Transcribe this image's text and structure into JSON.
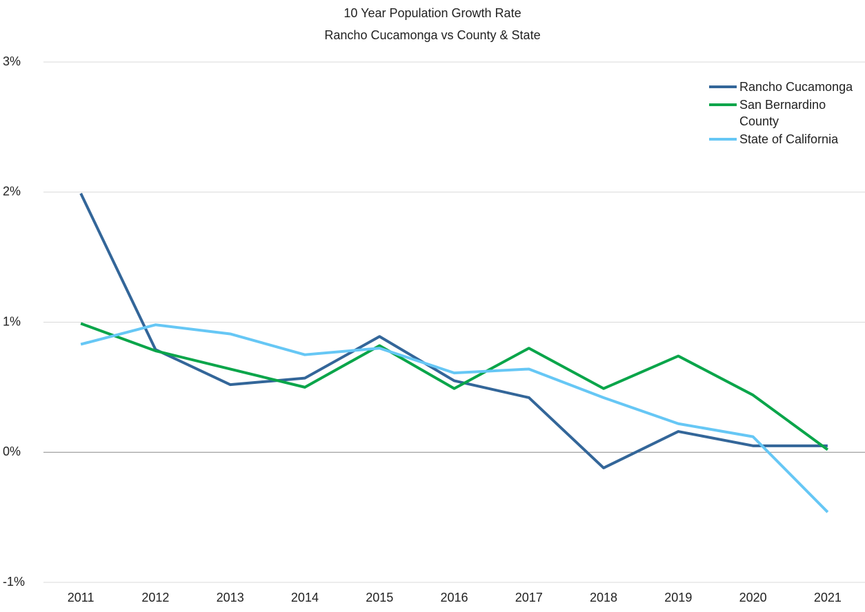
{
  "chart_data": {
    "type": "line",
    "title": "10 Year Population Growth Rate",
    "subtitle": "Rancho Cucamonga vs County & State",
    "categories": [
      "2011",
      "2012",
      "2013",
      "2014",
      "2015",
      "2016",
      "2017",
      "2018",
      "2019",
      "2020",
      "2021"
    ],
    "series": [
      {
        "name": "Rancho Cucamonga",
        "color": "#336699",
        "values": [
          1.99,
          0.79,
          0.52,
          0.57,
          0.89,
          0.55,
          0.42,
          -0.12,
          0.16,
          0.05,
          0.05
        ]
      },
      {
        "name": "San Bernardino County",
        "color": "#0aa54a",
        "values": [
          0.99,
          0.78,
          0.64,
          0.5,
          0.82,
          0.49,
          0.8,
          0.49,
          0.74,
          0.44,
          0.02
        ]
      },
      {
        "name": "State of California",
        "color": "#66c7f5",
        "values": [
          0.83,
          0.98,
          0.91,
          0.75,
          0.8,
          0.61,
          0.64,
          0.42,
          0.22,
          0.12,
          -0.46
        ]
      }
    ],
    "ylim": [
      -1,
      3
    ],
    "yticks": [
      {
        "value": -1,
        "label": "-1%"
      },
      {
        "value": 0,
        "label": "0%"
      },
      {
        "value": 1,
        "label": "1%"
      },
      {
        "value": 2,
        "label": "2%"
      },
      {
        "value": 3,
        "label": "3%"
      }
    ],
    "grid": true,
    "legend": "top-right"
  }
}
